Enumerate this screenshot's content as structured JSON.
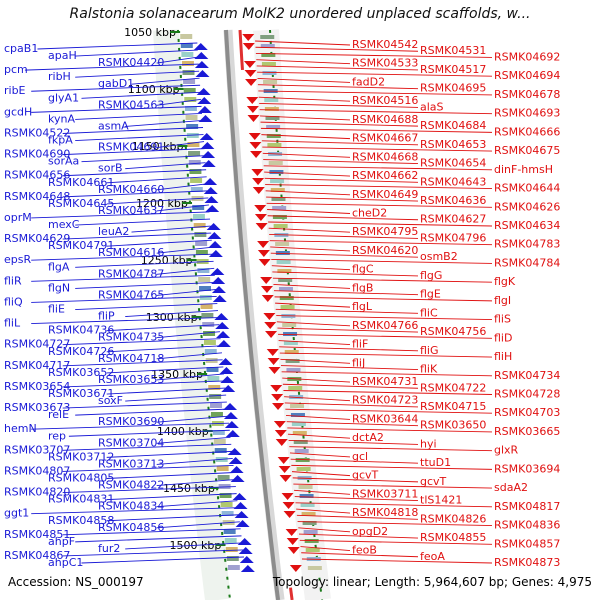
{
  "title": "Ralstonia solanacearum MolK2 unordered unplaced scaffolds, w...",
  "footer": {
    "accession": "Accession: NS_000197",
    "summary": "Topology: linear; Length: 5,964,607 bp; Genes: 4,975"
  },
  "colors": {
    "left_labels": "#1a1ad6",
    "right_labels": "#e01010",
    "minus_arrows": "#1a1ad6",
    "plus_arrows": "#e01010",
    "backbone": "#8c8c8c",
    "ruler_tick": "#1a7a1a"
  },
  "ruler": [
    "1050 kbp",
    "1100 kbp",
    "1150 kbp",
    "1200 kbp",
    "1250 kbp",
    "1300 kbp",
    "1350 kbp",
    "1400 kbp",
    "1450 kbp",
    "1500 kbp"
  ],
  "left_genes": [
    "cpaB1",
    "apaH",
    "RSMK04420",
    "pcm",
    "ribH",
    "gabD1",
    "ribE",
    "glyA1",
    "RSMK04563",
    "gcdH",
    "kynA",
    "asmA",
    "RSMK04522",
    "fkpA",
    "RSMK04691",
    "RSMK04690",
    "sorAa",
    "sorB",
    "RSMK04656",
    "RSMK04661",
    "RSMK04660",
    "RSMK04648",
    "RSMK04645",
    "RSMK04637",
    "oprM",
    "mexC",
    "leuA2",
    "RSMK04629",
    "RSMK04791",
    "RSMK04616",
    "epsR",
    "flgA",
    "RSMK04787",
    "fliR",
    "flgN",
    "RSMK04765",
    "fliQ",
    "fliE",
    "fliP",
    "fliL",
    "RSMK04736",
    "RSMK04735",
    "RSMK04727",
    "RSMK04726",
    "RSMK04718",
    "RSMK04717",
    "RSMK03652",
    "RSMK03653",
    "RSMK03654",
    "RSMK03671",
    "soxF",
    "RSMK03673",
    "relE",
    "RSMK03690",
    "hemN",
    "rep",
    "RSMK03704",
    "RSMK03707",
    "RSMK03712",
    "RSMK03713",
    "RSMK04807",
    "RSMK04805",
    "RSMK04822",
    "RSMK04820",
    "RSMK04831",
    "RSMK04834",
    "ggt1",
    "RSMK04858",
    "RSMK04856",
    "RSMK04851",
    "ahpF",
    "fur2",
    "RSMK04867",
    "ahpC1"
  ],
  "right_genes": [
    "RSMK04542",
    "RSMK04531",
    "RSMK04692",
    "RSMK04533",
    "RSMK04517",
    "RSMK04694",
    "fadD2",
    "RSMK04695",
    "RSMK04678",
    "RSMK04516",
    "alaS",
    "RSMK04693",
    "RSMK04688",
    "RSMK04684",
    "RSMK04666",
    "RSMK04667",
    "RSMK04653",
    "RSMK04675",
    "RSMK04668",
    "RSMK04654",
    "dinF-hmsH",
    "RSMK04662",
    "RSMK04643",
    "RSMK04644",
    "RSMK04649",
    "RSMK04636",
    "RSMK04626",
    "cheD2",
    "RSMK04627",
    "RSMK04634",
    "RSMK04795",
    "RSMK04796",
    "RSMK04783",
    "RSMK04620",
    "osmB2",
    "RSMK04784",
    "flgC",
    "flgG",
    "flgK",
    "flgB",
    "flgE",
    "flgI",
    "flgL",
    "fliC",
    "fliS",
    "RSMK04766",
    "RSMK04756",
    "fliD",
    "fliF",
    "fliG",
    "fliH",
    "fliJ",
    "fliK",
    "RSMK04734",
    "RSMK04731",
    "RSMK04722",
    "RSMK04728",
    "RSMK04723",
    "RSMK04715",
    "RSMK04703",
    "RSMK03644",
    "RSMK03650",
    "RSMK03665",
    "dctA2",
    "hyi",
    "glxR",
    "gcl",
    "ttuD1",
    "RSMK03694",
    "gcvT",
    "gcvT",
    "sdaA2",
    "RSMK03711",
    "tlS1421",
    "RSMK04817",
    "RSMK04818",
    "RSMK04826",
    "RSMK04836",
    "opgD2",
    "RSMK04855",
    "RSMK04857",
    "feoB",
    "feoA",
    "RSMK04873"
  ]
}
